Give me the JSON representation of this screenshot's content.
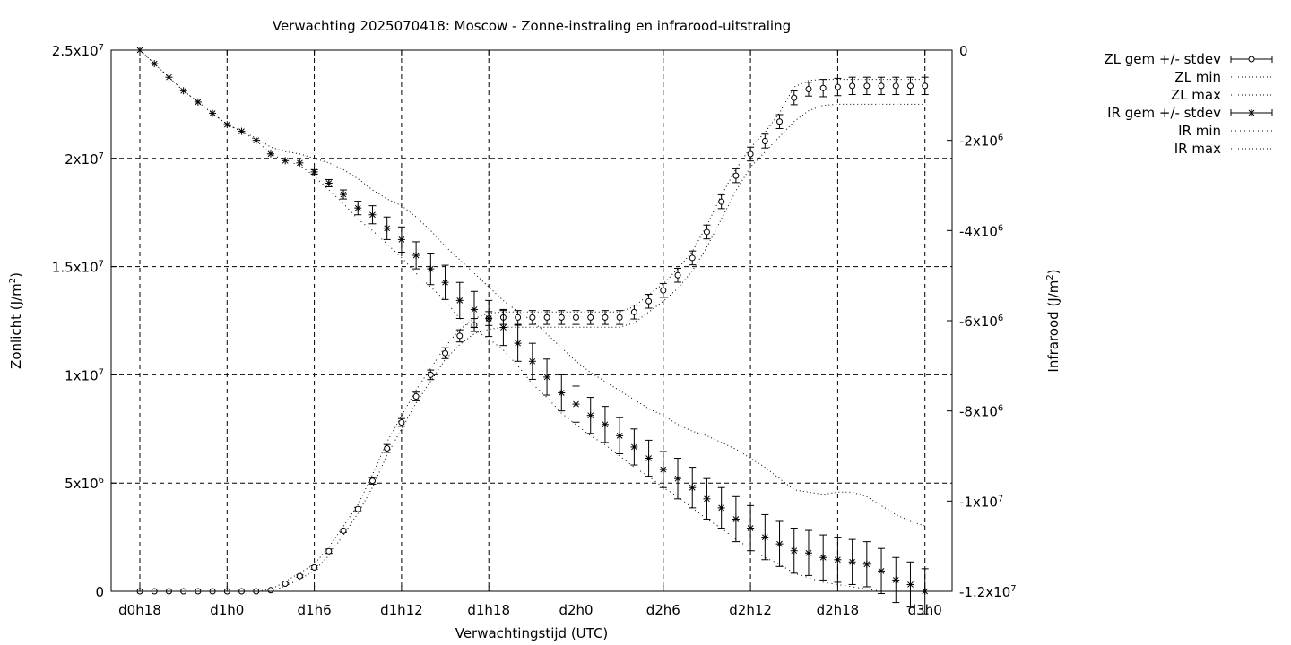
{
  "chart_data": {
    "type": "line",
    "title": "Verwachting 2025070418: Moscow - Zonne-instraling en infrarood-uitstraling",
    "xlabel": "Verwachtingstijd (UTC)",
    "ylabel": {
      "base": "Zonlicht (J/m",
      "sup": "2",
      "tail": ")"
    },
    "y2label": {
      "base": "Infrarood (J/m",
      "sup": "2",
      "tail": ")"
    },
    "x_ticks": [
      "d0h18",
      "d1h0",
      "d1h6",
      "d1h12",
      "d1h18",
      "d2h0",
      "d2h6",
      "d2h12",
      "d2h18",
      "d3h0"
    ],
    "x_hours": [
      0,
      54
    ],
    "ylim": [
      0,
      25000000
    ],
    "y2lim": [
      -12000000,
      0
    ],
    "y_ticks": [
      {
        "v": 0,
        "m": "0",
        "e": ""
      },
      {
        "v": 5000000,
        "m": "5x10",
        "e": "6"
      },
      {
        "v": 10000000,
        "m": "1x10",
        "e": "7"
      },
      {
        "v": 15000000,
        "m": "1.5x10",
        "e": "7"
      },
      {
        "v": 20000000,
        "m": "2x10",
        "e": "7"
      },
      {
        "v": 25000000,
        "m": "2.5x10",
        "e": "7"
      }
    ],
    "y2_ticks": [
      {
        "v": 0,
        "m": "0",
        "e": ""
      },
      {
        "v": -2000000,
        "m": "-2x10",
        "e": "6"
      },
      {
        "v": -4000000,
        "m": "-4x10",
        "e": "6"
      },
      {
        "v": -6000000,
        "m": "-6x10",
        "e": "6"
      },
      {
        "v": -8000000,
        "m": "-8x10",
        "e": "6"
      },
      {
        "v": -10000000,
        "m": "-1x10",
        "e": "7"
      },
      {
        "v": -12000000,
        "m": "-1.2x10",
        "e": "7"
      }
    ],
    "grid": true,
    "legend_position": "top-right outside",
    "legend": [
      "ZL gem +/- stdev",
      "ZL min",
      "ZL max",
      "IR gem +/- stdev",
      "IR min",
      "IR max"
    ],
    "zl_mean": [
      0,
      0,
      0,
      0,
      0,
      0,
      0,
      0,
      0,
      50000,
      350000,
      700000,
      1100000,
      1850000,
      2800000,
      3800000,
      5100000,
      6600000,
      7800000,
      9000000,
      10000000,
      11000000,
      11800000,
      12300000,
      12600000,
      12650000,
      12650000,
      12650000,
      12650000,
      12650000,
      12650000,
      12650000,
      12650000,
      12650000,
      12900000,
      13400000,
      13900000,
      14600000,
      15400000,
      16600000,
      18000000,
      19200000,
      20200000,
      20800000,
      21700000,
      22800000,
      23200000,
      23250000,
      23300000,
      23350000,
      23350000,
      23350000,
      23350000,
      23350000,
      23350000
    ],
    "zl_std": [
      0,
      0,
      0,
      0,
      0,
      0,
      0,
      0,
      0,
      0,
      40000,
      50000,
      80000,
      100000,
      80000,
      80000,
      150000,
      180000,
      180000,
      200000,
      220000,
      250000,
      280000,
      300000,
      320000,
      320000,
      320000,
      320000,
      320000,
      320000,
      320000,
      320000,
      320000,
      320000,
      320000,
      320000,
      320000,
      320000,
      320000,
      320000,
      320000,
      320000,
      320000,
      320000,
      320000,
      320000,
      320000,
      400000,
      400000,
      400000,
      400000,
      400000,
      400000,
      400000,
      400000
    ],
    "zl_min": [
      0,
      0,
      0,
      0,
      0,
      0,
      0,
      0,
      0,
      0,
      250000,
      550000,
      950000,
      1650000,
      2600000,
      3600000,
      4800000,
      6300000,
      7500000,
      8700000,
      9700000,
      10700000,
      11400000,
      11900000,
      12100000,
      12200000,
      12200000,
      12200000,
      12200000,
      12200000,
      12200000,
      12200000,
      12200000,
      12200000,
      12400000,
      12900000,
      13400000,
      14000000,
      14800000,
      15900000,
      17200000,
      18500000,
      19600000,
      20300000,
      21000000,
      21700000,
      22200000,
      22450000,
      22500000,
      22500000,
      22500000,
      22500000,
      22500000,
      22500000,
      22500000
    ],
    "zl_max": [
      0,
      0,
      0,
      0,
      0,
      0,
      0,
      0,
      0,
      80000,
      450000,
      850000,
      1250000,
      2050000,
      3000000,
      4000000,
      5400000,
      6900000,
      8100000,
      9300000,
      10300000,
      11300000,
      12100000,
      12600000,
      12850000,
      12900000,
      12900000,
      12900000,
      12900000,
      12900000,
      12900000,
      12900000,
      12900000,
      12900000,
      13150000,
      13700000,
      14200000,
      14900000,
      15700000,
      16900000,
      18300000,
      19500000,
      20500000,
      21200000,
      22100000,
      23300000,
      23600000,
      23650000,
      23650000,
      23650000,
      23650000,
      23650000,
      23650000,
      23650000,
      23650000
    ],
    "ir_mean": [
      0,
      -300000,
      -600000,
      -900000,
      -1150000,
      -1400000,
      -1650000,
      -1800000,
      -2000000,
      -2300000,
      -2450000,
      -2500000,
      -2700000,
      -2950000,
      -3200000,
      -3500000,
      -3650000,
      -3950000,
      -4200000,
      -4550000,
      -4850000,
      -5150000,
      -5550000,
      -5750000,
      -5950000,
      -6150000,
      -6500000,
      -6900000,
      -7250000,
      -7600000,
      -7850000,
      -8100000,
      -8300000,
      -8550000,
      -8800000,
      -9050000,
      -9300000,
      -9500000,
      -9700000,
      -9950000,
      -10150000,
      -10400000,
      -10600000,
      -10800000,
      -10950000,
      -11100000,
      -11150000,
      -11250000,
      -11300000,
      -11350000,
      -11400000,
      -11550000,
      -11750000,
      -11850000,
      -12000000
    ],
    "ir_std": [
      0,
      0,
      0,
      0,
      0,
      0,
      0,
      0,
      0,
      0,
      0,
      0,
      50000,
      80000,
      100000,
      150000,
      200000,
      250000,
      280000,
      300000,
      350000,
      380000,
      400000,
      400000,
      400000,
      400000,
      400000,
      400000,
      400000,
      400000,
      400000,
      400000,
      400000,
      400000,
      400000,
      400000,
      400000,
      450000,
      450000,
      450000,
      450000,
      500000,
      500000,
      500000,
      500000,
      500000,
      500000,
      500000,
      500000,
      500000,
      500000,
      500000,
      500000,
      500000,
      500000
    ],
    "ir_min": [
      0,
      -300000,
      -600000,
      -900000,
      -1150000,
      -1400000,
      -1650000,
      -1800000,
      -2000000,
      -2300000,
      -2450000,
      -2550000,
      -2800000,
      -3100000,
      -3400000,
      -3750000,
      -4000000,
      -4300000,
      -4600000,
      -4950000,
      -5250000,
      -5550000,
      -5950000,
      -6200000,
      -6400000,
      -6650000,
      -7000000,
      -7400000,
      -7700000,
      -8050000,
      -8300000,
      -8550000,
      -8750000,
      -9000000,
      -9250000,
      -9450000,
      -9700000,
      -9900000,
      -10150000,
      -10400000,
      -10600000,
      -10850000,
      -11050000,
      -11250000,
      -11400000,
      -11600000,
      -11700000,
      -11800000,
      -11850000,
      -11900000,
      -11950000,
      -12000000,
      -12000000,
      -12000000,
      -12000000
    ],
    "ir_max": [
      0,
      -300000,
      -600000,
      -900000,
      -1150000,
      -1400000,
      -1650000,
      -1800000,
      -1950000,
      -2150000,
      -2250000,
      -2300000,
      -2400000,
      -2500000,
      -2650000,
      -2850000,
      -3100000,
      -3300000,
      -3450000,
      -3700000,
      -4000000,
      -4350000,
      -4650000,
      -4950000,
      -5250000,
      -5550000,
      -5800000,
      -6000000,
      -6300000,
      -6600000,
      -6900000,
      -7150000,
      -7350000,
      -7550000,
      -7750000,
      -7950000,
      -8100000,
      -8300000,
      -8450000,
      -8550000,
      -8700000,
      -8850000,
      -9050000,
      -9250000,
      -9500000,
      -9750000,
      -9800000,
      -9850000,
      -9800000,
      -9800000,
      -9900000,
      -10100000,
      -10300000,
      -10450000,
      -10550000
    ]
  }
}
